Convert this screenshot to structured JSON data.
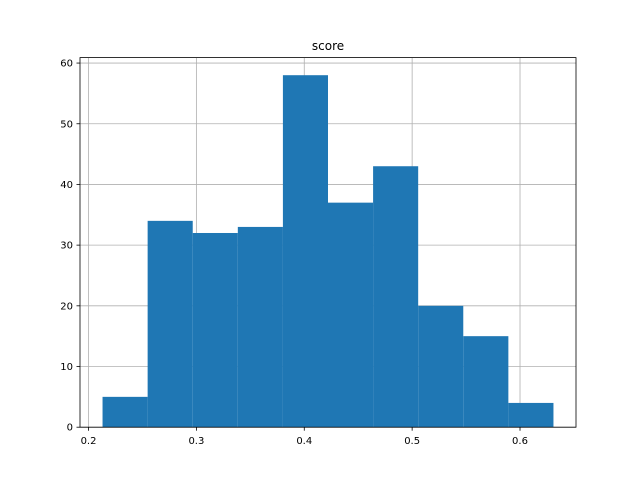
{
  "chart_data": {
    "type": "histogram",
    "title": "score",
    "bins": [
      0.213,
      0.2548,
      0.2966,
      0.3384,
      0.3802,
      0.422,
      0.4638,
      0.5056,
      0.5474,
      0.5892,
      0.631
    ],
    "values": [
      5,
      34,
      32,
      33,
      58,
      37,
      43,
      20,
      15,
      4
    ],
    "color": "#1f77b4",
    "xlim": [
      0.1921,
      0.6519
    ],
    "xticks": [
      0.2,
      0.3,
      0.4,
      0.5,
      0.6
    ],
    "ylim": [
      0,
      60.9
    ],
    "yticks": [
      0,
      10,
      20,
      30,
      40,
      50,
      60
    ],
    "grid": true
  }
}
